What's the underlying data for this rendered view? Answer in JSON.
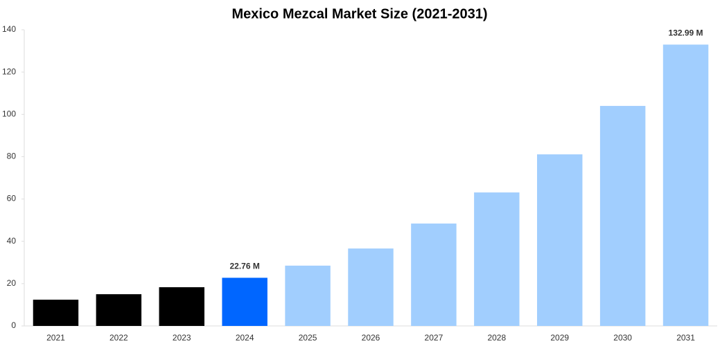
{
  "chart_data": {
    "type": "bar",
    "title": "Mexico Mezcal Market Size (2021-2031)",
    "categories": [
      "2021",
      "2022",
      "2023",
      "2024",
      "2025",
      "2026",
      "2027",
      "2028",
      "2029",
      "2030",
      "2031"
    ],
    "values": [
      12.4,
      15.0,
      18.3,
      22.76,
      28.5,
      36.6,
      48.4,
      63.1,
      81.1,
      104.0,
      132.99
    ],
    "value_labels": [
      null,
      null,
      null,
      "22.76 M",
      null,
      null,
      null,
      null,
      null,
      null,
      "132.99 M"
    ],
    "colors": [
      "#000000",
      "#000000",
      "#000000",
      "#0066ff",
      "#a1cefe",
      "#a1cefe",
      "#a1cefe",
      "#a1cefe",
      "#a1cefe",
      "#a1cefe",
      "#a1cefe"
    ],
    "ylim": [
      0,
      140
    ],
    "yticks": [
      0,
      20,
      40,
      60,
      80,
      100,
      120,
      140
    ],
    "grid": false
  }
}
